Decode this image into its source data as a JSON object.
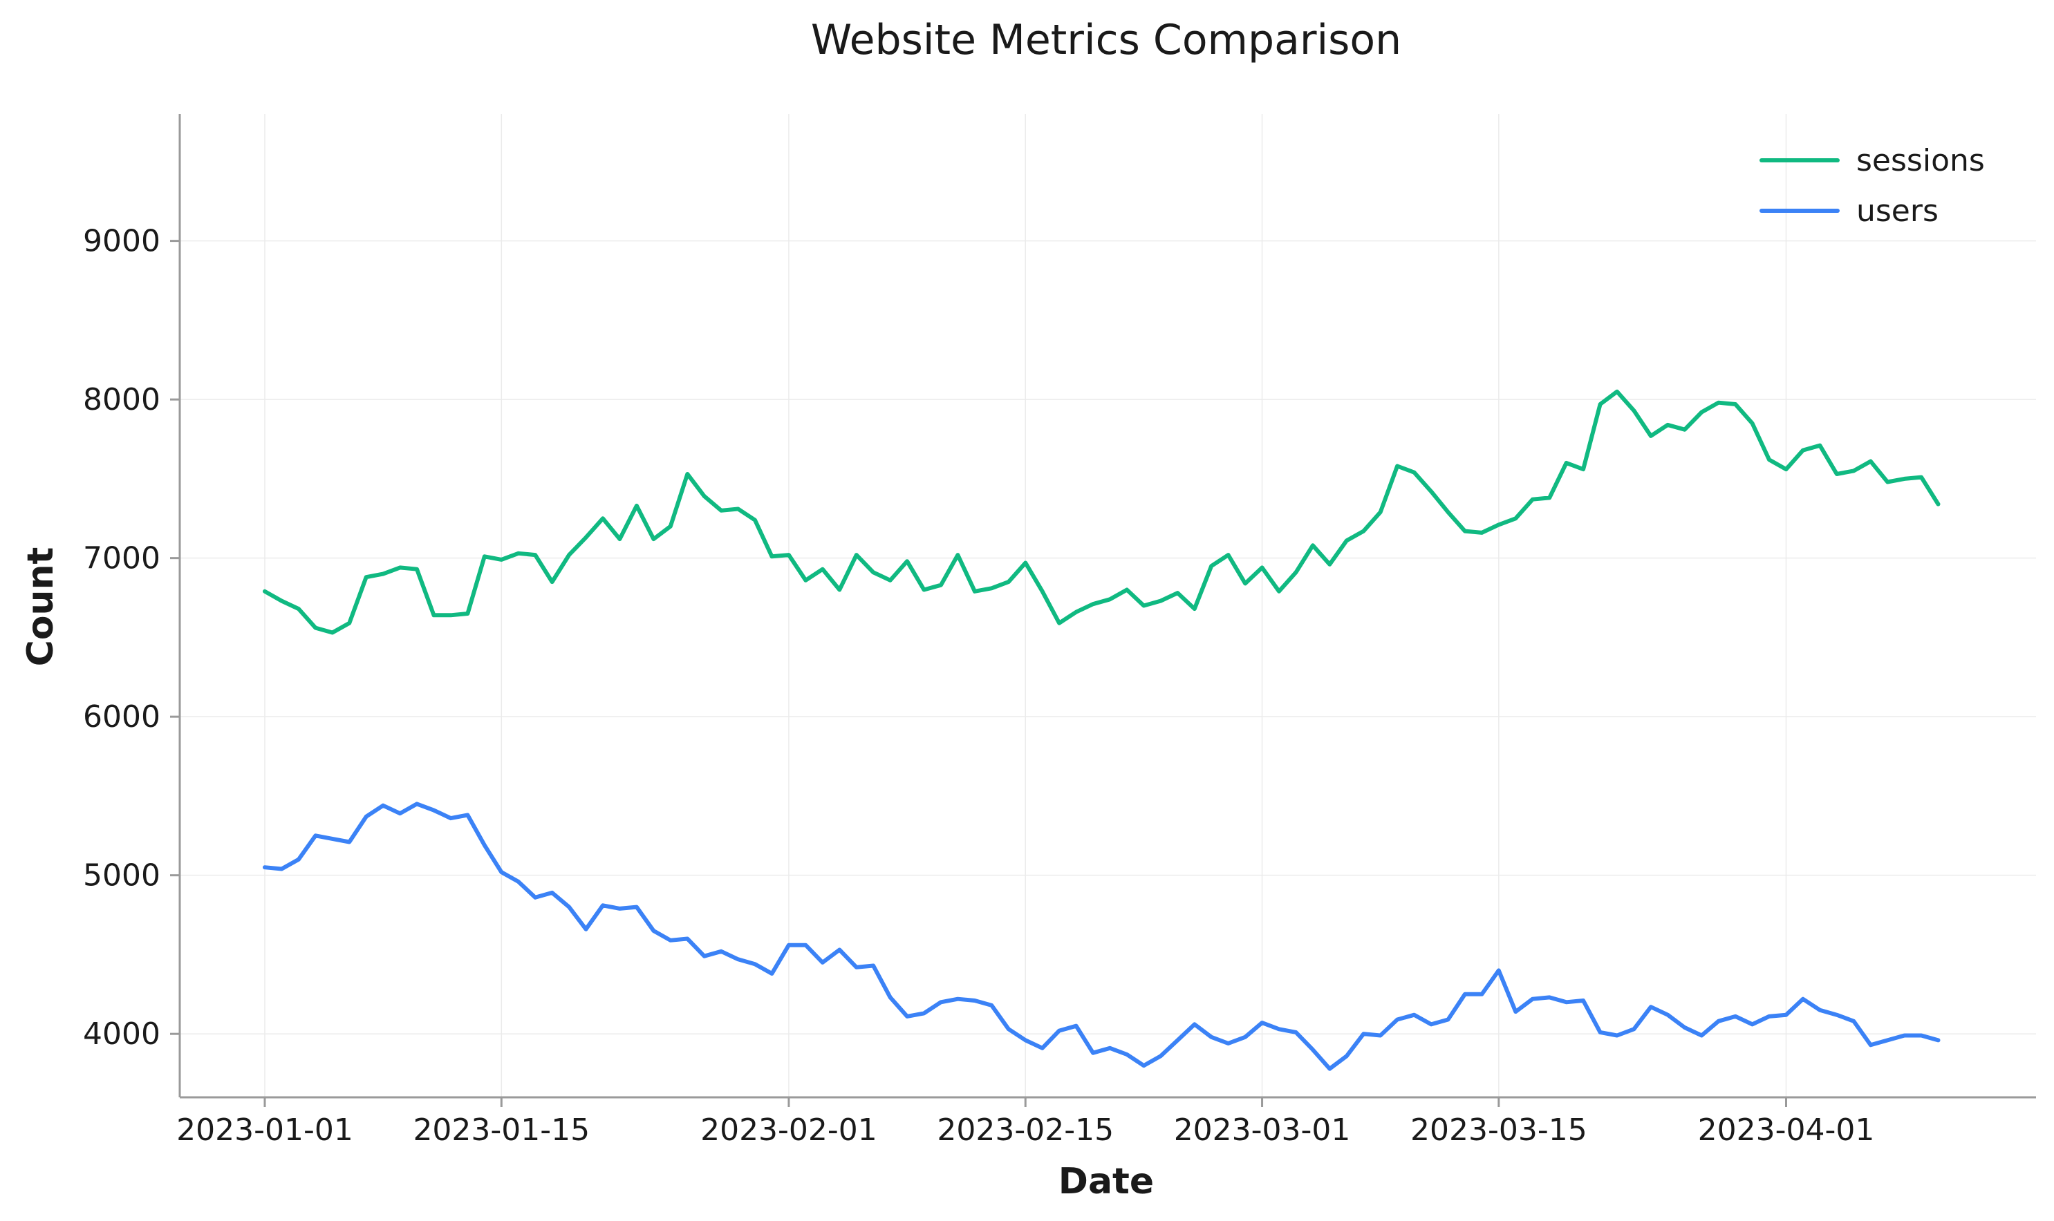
{
  "chart_data": {
    "type": "line",
    "title": "Website Metrics Comparison",
    "xlabel": "Date",
    "ylabel": "Count",
    "x_start": "2023-01-01",
    "x_ticks": [
      "2023-01-01",
      "2023-01-15",
      "2023-02-01",
      "2023-02-15",
      "2023-03-01",
      "2023-03-15",
      "2023-04-01"
    ],
    "y_ticks": [
      4000,
      5000,
      6000,
      7000,
      8000,
      9000
    ],
    "ylim": [
      3600,
      9800
    ],
    "grid": true,
    "legend_position": "top-right",
    "series": [
      {
        "name": "sessions",
        "color": "#10b981",
        "values": [
          6790,
          6730,
          6680,
          6560,
          6530,
          6590,
          6880,
          6900,
          6940,
          6930,
          6640,
          6640,
          6650,
          7010,
          6990,
          7030,
          7020,
          6850,
          7020,
          7130,
          7250,
          7120,
          7330,
          7120,
          7200,
          7530,
          7390,
          7300,
          7310,
          7240,
          7010,
          7020,
          6860,
          6930,
          6800,
          7020,
          6910,
          6860,
          6980,
          6800,
          6830,
          7020,
          6790,
          6810,
          6850,
          6970,
          6790,
          6590,
          6660,
          6710,
          6740,
          6800,
          6700,
          6730,
          6780,
          6680,
          6950,
          7020,
          6840,
          6940,
          6790,
          6910,
          7080,
          6960,
          7110,
          7170,
          7290,
          7580,
          7540,
          7420,
          7290,
          7170,
          7160,
          7210,
          7250,
          7370,
          7380,
          7600,
          7560,
          7970,
          8050,
          7930,
          7770,
          7840,
          7810,
          7920,
          7980,
          7970,
          7850,
          7620,
          7560,
          7680,
          7710,
          7530,
          7550,
          7610,
          7480,
          7500,
          7510,
          7340
        ]
      },
      {
        "name": "users",
        "color": "#3b82f6",
        "values": [
          5050,
          5040,
          5100,
          5250,
          5230,
          5210,
          5370,
          5440,
          5390,
          5450,
          5410,
          5360,
          5380,
          5190,
          5020,
          4960,
          4860,
          4890,
          4800,
          4660,
          4810,
          4790,
          4800,
          4650,
          4590,
          4600,
          4490,
          4520,
          4470,
          4440,
          4380,
          4560,
          4560,
          4450,
          4530,
          4420,
          4430,
          4230,
          4110,
          4130,
          4200,
          4220,
          4210,
          4180,
          4030,
          3960,
          3910,
          4020,
          4050,
          3880,
          3910,
          3870,
          3800,
          3860,
          3960,
          4060,
          3980,
          3940,
          3980,
          4070,
          4030,
          4010,
          3900,
          3780,
          3860,
          4000,
          3990,
          4090,
          4120,
          4060,
          4090,
          4250,
          4250,
          4400,
          4140,
          4220,
          4230,
          4200,
          4210,
          4010,
          3990,
          4030,
          4170,
          4120,
          4040,
          3990,
          4080,
          4110,
          4060,
          4110,
          4120,
          4220,
          4150,
          4120,
          4080,
          3930,
          3960,
          3990,
          3990,
          3960
        ]
      }
    ]
  }
}
